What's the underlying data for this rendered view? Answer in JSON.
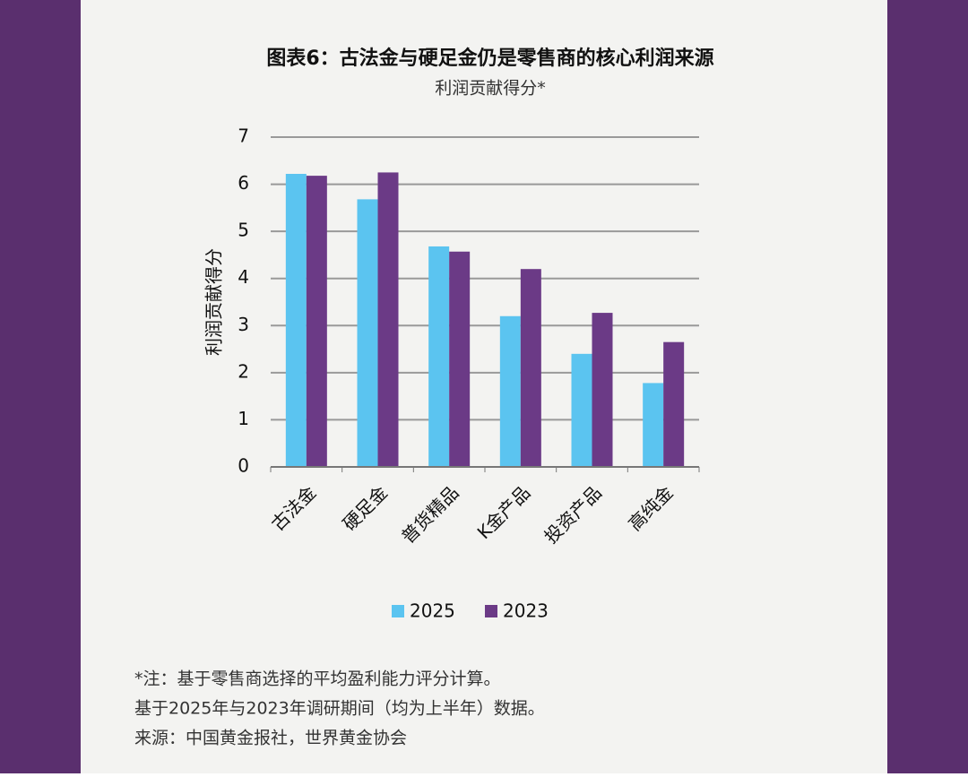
{
  "chart_data": {
    "type": "bar",
    "title": "图表6：古法金与硬足金仍是零售商的核心利润来源",
    "subtitle": "利润贡献得分*",
    "y_label": "利润贡献得分",
    "categories": [
      "古法金",
      "硬足金",
      "普货精品",
      "K金产品",
      "投资产品",
      "高纯金"
    ],
    "series": [
      {
        "name": "2025",
        "color": "#5bc4f0",
        "values": [
          6.22,
          5.68,
          4.68,
          3.2,
          2.4,
          1.78
        ]
      },
      {
        "name": "2023",
        "color": "#6b3a86",
        "values": [
          6.18,
          6.25,
          4.57,
          4.2,
          3.27,
          2.65
        ]
      }
    ],
    "ylim": [
      0,
      7
    ],
    "yticks": [
      0,
      1,
      2,
      3,
      4,
      5,
      6,
      7
    ],
    "grid": true,
    "notes": [
      "*注：基于零售商选择的平均盈利能力评分计算。",
      "基于2025年与2023年调研期间（均为上半年）数据。",
      "来源：中国黄金报社，世界黄金协会"
    ]
  }
}
